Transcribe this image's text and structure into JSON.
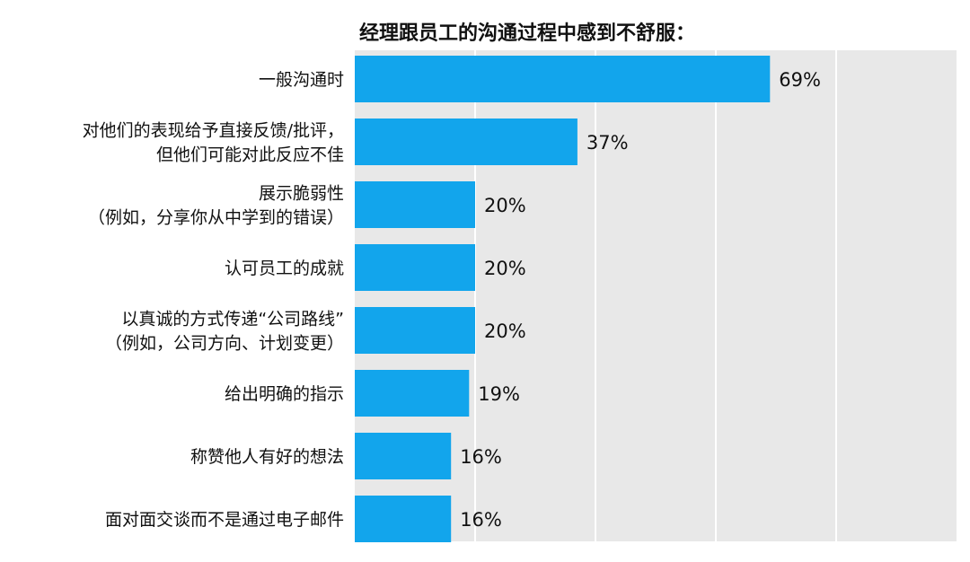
{
  "chart_data": {
    "type": "bar",
    "orientation": "horizontal",
    "title": "经理跟员工的沟通过程中感到不舒服：",
    "categories": [
      [
        "一般沟通时"
      ],
      [
        "对他们的表现给予直接反馈/批评，",
        "但他们可能对此反应不佳"
      ],
      [
        "展示脆弱性",
        "（例如，分享你从中学到的错误）"
      ],
      [
        "认可员工的成就"
      ],
      [
        "以真诚的方式传递“公司路线”",
        "（例如，公司方向、计划变更）"
      ],
      [
        "给出明确的指示"
      ],
      [
        "称赞他人有好的想法"
      ],
      [
        "面对面交谈而不是通过电子邮件"
      ]
    ],
    "values": [
      69,
      37,
      20,
      20,
      20,
      19,
      16,
      16
    ],
    "value_labels": [
      "69%",
      "37%",
      "20%",
      "20%",
      "20%",
      "19%",
      "16%",
      "16%"
    ],
    "xlim": [
      0,
      100
    ],
    "grid": true,
    "colors": {
      "bar": "#12a5ec",
      "background": "#e8e8e8",
      "gridline": "#ffffff"
    }
  }
}
